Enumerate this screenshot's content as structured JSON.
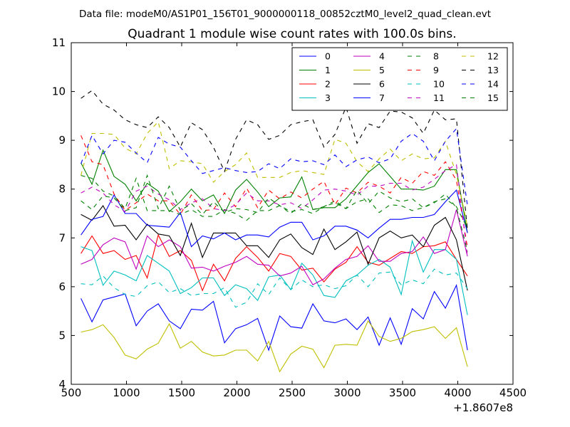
{
  "page": {
    "suptitle": "Data file: modeM0/AS1P01_156T01_9000000118_00852cztM0_level2_quad_clean.evt"
  },
  "chart_data": {
    "type": "line",
    "title": "Quadrant 1 module wise count rates with 100.0s bins.",
    "xlabel": "",
    "ylabel": "",
    "xlim": [
      500,
      4500
    ],
    "ylim": [
      4,
      11
    ],
    "xticks": [
      500,
      1000,
      1500,
      2000,
      2500,
      3000,
      3500,
      4000,
      4500
    ],
    "yticks": [
      4,
      5,
      6,
      7,
      8,
      9,
      10,
      11
    ],
    "x_offset_label": "+1.8607e8",
    "grid": false,
    "legend_position": "top-right",
    "legend_columns": 4,
    "x": [
      588,
      688,
      788,
      888,
      988,
      1088,
      1188,
      1288,
      1388,
      1488,
      1588,
      1688,
      1788,
      1888,
      1988,
      2088,
      2188,
      2288,
      2388,
      2488,
      2588,
      2688,
      2788,
      2888,
      2988,
      3088,
      3188,
      3288,
      3388,
      3488,
      3588,
      3688,
      3788,
      3888,
      3988,
      4088
    ],
    "series": [
      {
        "name": "0",
        "color": "#0000ff",
        "dash": "solid",
        "values": [
          5.76,
          5.28,
          5.73,
          5.79,
          5.85,
          5.2,
          5.5,
          5.65,
          5.3,
          5.14,
          5.54,
          5.52,
          5.7,
          4.85,
          5.14,
          5.22,
          5.35,
          4.7,
          5.4,
          5.18,
          5.15,
          5.65,
          5.3,
          5.26,
          5.34,
          5.12,
          5.38,
          4.8,
          5.36,
          4.82,
          5.55,
          5.34,
          5.9,
          5.56,
          6.03,
          4.7
        ]
      },
      {
        "name": "1",
        "color": "#008000",
        "dash": "solid",
        "values": [
          8.54,
          8.1,
          8.8,
          8.26,
          8.1,
          7.76,
          8.12,
          7.96,
          7.54,
          7.74,
          8.0,
          7.76,
          7.88,
          7.5,
          7.98,
          8.2,
          7.94,
          7.64,
          7.82,
          7.84,
          8.25,
          7.58,
          7.62,
          7.62,
          7.8,
          8.07,
          8.34,
          8.52,
          8.26,
          8.0,
          8.0,
          7.98,
          8.06,
          8.4,
          8.4,
          7.1
        ]
      },
      {
        "name": "2",
        "color": "#ff0000",
        "dash": "solid",
        "values": [
          6.68,
          7.04,
          6.68,
          6.74,
          6.56,
          6.64,
          6.18,
          7.06,
          6.62,
          6.74,
          6.54,
          5.92,
          6.46,
          6.12,
          6.58,
          6.82,
          6.6,
          6.32,
          6.68,
          6.62,
          6.34,
          6.38,
          6.1,
          6.36,
          6.5,
          6.82,
          6.5,
          6.44,
          6.58,
          6.72,
          6.68,
          6.82,
          6.84,
          6.92,
          6.56,
          6.22
        ]
      },
      {
        "name": "3",
        "color": "#00bfbf",
        "dash": "solid",
        "values": [
          6.82,
          6.74,
          6.03,
          6.32,
          6.24,
          6.12,
          6.64,
          6.48,
          6.32,
          5.86,
          5.98,
          6.18,
          6.18,
          5.82,
          6.04,
          5.96,
          5.72,
          6.2,
          6.24,
          5.94,
          6.48,
          6.24,
          5.82,
          5.78,
          6.12,
          6.24,
          6.44,
          6.56,
          6.4,
          5.84,
          6.94,
          6.3,
          6.76,
          6.76,
          6.56,
          5.42
        ]
      },
      {
        "name": "4",
        "color": "#bf00bf",
        "dash": "solid",
        "values": [
          6.46,
          6.56,
          6.86,
          7.0,
          6.92,
          6.36,
          7.04,
          6.82,
          6.96,
          6.82,
          6.38,
          6.4,
          6.32,
          6.42,
          6.5,
          6.62,
          6.46,
          6.44,
          6.22,
          6.28,
          6.42,
          6.04,
          6.16,
          6.38,
          6.56,
          6.62,
          6.84,
          6.52,
          6.52,
          6.68,
          6.72,
          7.02,
          6.68,
          6.76,
          7.58,
          6.62
        ]
      },
      {
        "name": "5",
        "color": "#bfbf00",
        "dash": "solid",
        "values": [
          5.07,
          5.12,
          5.22,
          4.96,
          4.6,
          4.52,
          4.72,
          4.84,
          5.24,
          4.74,
          4.88,
          4.66,
          4.58,
          4.6,
          4.7,
          4.7,
          4.48,
          4.88,
          4.26,
          4.62,
          4.78,
          4.72,
          4.34,
          4.8,
          4.82,
          4.8,
          5.3,
          4.98,
          4.88,
          4.94,
          5.08,
          5.12,
          5.18,
          4.94,
          5.16,
          4.36
        ]
      },
      {
        "name": "6",
        "color": "#000000",
        "dash": "solid",
        "values": [
          7.48,
          7.36,
          7.66,
          7.24,
          7.26,
          6.96,
          7.28,
          7.08,
          7.04,
          6.64,
          7.3,
          6.6,
          7.1,
          7.1,
          7.1,
          6.84,
          6.84,
          6.6,
          6.96,
          7.08,
          6.8,
          6.66,
          7.18,
          6.76,
          6.92,
          7.12,
          6.46,
          7.0,
          7.14,
          7.0,
          7.06,
          6.82,
          7.26,
          7.42,
          6.96,
          5.92
        ]
      },
      {
        "name": "7",
        "color": "#0000ff",
        "dash": "solid",
        "values": [
          7.06,
          7.38,
          7.44,
          7.88,
          7.5,
          7.5,
          7.26,
          7.24,
          7.22,
          7.52,
          6.82,
          7.04,
          6.98,
          7.1,
          6.96,
          7.06,
          7.06,
          7.02,
          7.22,
          7.32,
          7.32,
          6.96,
          7.04,
          7.24,
          7.24,
          7.16,
          7.0,
          7.2,
          7.38,
          7.38,
          7.42,
          7.42,
          7.48,
          7.74,
          7.98,
          7.1
        ]
      },
      {
        "name": "8",
        "color": "#008000",
        "dash": "dash",
        "values": [
          8.28,
          8.22,
          7.96,
          7.86,
          7.6,
          8.22,
          7.56,
          7.56,
          7.56,
          7.48,
          7.58,
          7.44,
          7.44,
          7.58,
          7.5,
          7.36,
          7.56,
          7.56,
          7.66,
          7.54,
          7.58,
          7.5,
          7.64,
          7.76,
          7.6,
          7.74,
          7.8,
          7.52,
          7.68,
          7.66,
          7.56,
          7.62,
          7.74,
          7.8,
          7.64,
          7.2
        ]
      },
      {
        "name": "9",
        "color": "#ff0000",
        "dash": "dash",
        "values": [
          9.1,
          8.56,
          8.5,
          7.9,
          7.56,
          7.72,
          7.9,
          7.76,
          7.76,
          7.48,
          7.88,
          7.56,
          7.58,
          7.92,
          7.64,
          8.02,
          7.62,
          7.98,
          7.8,
          7.94,
          7.82,
          8.0,
          8.16,
          7.68,
          8.02,
          7.92,
          8.14,
          8.06,
          7.92,
          8.24,
          8.12,
          8.36,
          8.28,
          8.56,
          8.18,
          6.8
        ]
      },
      {
        "name": "10",
        "color": "#00bfbf",
        "dash": "dash",
        "values": [
          6.06,
          6.04,
          6.22,
          5.98,
          5.84,
          5.8,
          6.02,
          6.1,
          5.88,
          5.96,
          5.82,
          5.86,
          5.86,
          5.98,
          5.58,
          5.68,
          6.06,
          5.84,
          6.18,
          5.94,
          6.14,
          6.0,
          6.04,
          5.96,
          6.02,
          6.24,
          6.0,
          6.28,
          6.3,
          6.04,
          6.14,
          6.06,
          6.36,
          6.24,
          6.28,
          5.96
        ]
      },
      {
        "name": "11",
        "color": "#bf00bf",
        "dash": "dash",
        "values": [
          7.92,
          8.04,
          7.92,
          7.68,
          7.54,
          7.96,
          8.06,
          7.9,
          7.78,
          7.58,
          7.72,
          7.8,
          7.6,
          7.56,
          7.68,
          7.92,
          7.76,
          7.76,
          7.68,
          7.72,
          7.6,
          7.78,
          7.98,
          8.0,
          7.96,
          7.88,
          8.06,
          8.06,
          8.12,
          8.12,
          7.98,
          8.04,
          8.2,
          8.38,
          8.5,
          6.62
        ]
      },
      {
        "name": "12",
        "color": "#bfbf00",
        "dash": "dash",
        "values": [
          8.28,
          9.14,
          9.14,
          9.12,
          8.84,
          8.72,
          9.14,
          9.38,
          8.42,
          8.58,
          8.56,
          8.52,
          8.14,
          8.36,
          8.5,
          8.74,
          8.24,
          8.24,
          8.24,
          8.34,
          8.38,
          8.34,
          8.3,
          9.02,
          8.94,
          8.56,
          8.36,
          8.62,
          8.82,
          8.58,
          8.72,
          8.62,
          8.64,
          8.98,
          8.3,
          7.24
        ]
      },
      {
        "name": "13",
        "color": "#000000",
        "dash": "dash",
        "values": [
          9.86,
          10.02,
          9.74,
          9.62,
          9.42,
          9.32,
          9.26,
          9.48,
          9.26,
          8.86,
          9.36,
          9.22,
          8.86,
          8.36,
          9.02,
          9.42,
          9.32,
          9.02,
          9.1,
          9.32,
          9.38,
          9.42,
          8.86,
          9.12,
          9.68,
          8.94,
          9.34,
          9.26,
          9.6,
          9.58,
          9.46,
          9.14,
          9.62,
          9.42,
          9.44,
          7.16
        ]
      },
      {
        "name": "14",
        "color": "#0000ff",
        "dash": "dash",
        "values": [
          8.52,
          9.1,
          8.72,
          9.0,
          8.96,
          8.74,
          8.54,
          9.06,
          8.92,
          8.86,
          8.58,
          8.32,
          8.38,
          8.44,
          8.38,
          8.34,
          8.36,
          8.52,
          8.42,
          8.62,
          8.56,
          8.58,
          8.5,
          8.7,
          8.46,
          8.6,
          8.66,
          8.54,
          8.62,
          8.98,
          9.14,
          8.98,
          8.58,
          8.98,
          9.24,
          7.66
        ]
      },
      {
        "name": "15",
        "color": "#008000",
        "dash": "dash",
        "values": [
          7.76,
          7.58,
          7.86,
          7.82,
          7.56,
          7.62,
          8.28,
          7.6,
          8.06,
          7.56,
          7.7,
          7.48,
          7.74,
          7.52,
          7.6,
          7.58,
          7.52,
          7.82,
          7.66,
          7.5,
          7.7,
          7.58,
          7.64,
          7.72,
          7.6,
          7.98,
          7.7,
          7.96,
          7.82,
          7.74,
          7.8,
          7.62,
          7.72,
          7.9,
          7.62,
          6.72
        ]
      }
    ]
  }
}
